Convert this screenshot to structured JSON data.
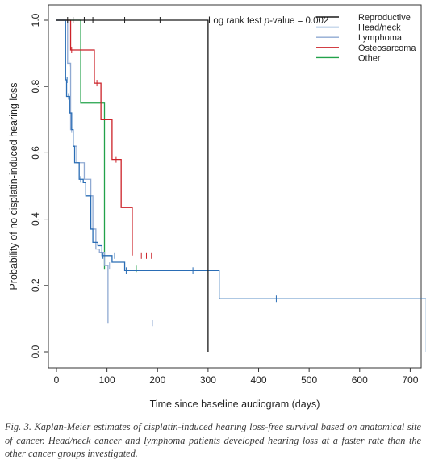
{
  "chart_data": {
    "type": "line",
    "subtype": "kaplan-meier step",
    "title": "",
    "xlabel": "Time since baseline audiogram (days)",
    "ylabel": "Probability of no cisplatin-induced hearing loss",
    "xlim": [
      0,
      750
    ],
    "ylim": [
      0,
      1.0
    ],
    "xticks": [
      0,
      100,
      200,
      300,
      400,
      500,
      600,
      700
    ],
    "yticks": [
      0.0,
      0.2,
      0.4,
      0.6,
      0.8,
      1.0
    ],
    "xtick_labels": [
      "0",
      "100",
      "200",
      "300",
      "400",
      "500",
      "600",
      "700"
    ],
    "ytick_labels": [
      "0.0",
      "0.2",
      "0.4",
      "0.6",
      "0.8",
      "1.0"
    ],
    "grid": false,
    "legend_position": "top-right",
    "annotation": {
      "prefix": "Log rank test ",
      "italic": "p",
      "suffix": "-value = 0.002"
    },
    "series": [
      {
        "name": "Reproductive",
        "color": "#1a1a1a",
        "steps": [
          [
            0,
            1.0
          ],
          [
            300,
            0.0
          ]
        ],
        "censored": [
          [
            22,
            1.0
          ],
          [
            33,
            1.0
          ],
          [
            55,
            1.0
          ],
          [
            72,
            1.0
          ],
          [
            135,
            1.0
          ],
          [
            205,
            1.0
          ]
        ]
      },
      {
        "name": "Head/neck",
        "color": "#2a6db5",
        "steps": [
          [
            0,
            1.0
          ],
          [
            18,
            0.82
          ],
          [
            20,
            0.77
          ],
          [
            26,
            0.72
          ],
          [
            30,
            0.67
          ],
          [
            33,
            0.62
          ],
          [
            36,
            0.57
          ],
          [
            45,
            0.52
          ],
          [
            53,
            0.51
          ],
          [
            58,
            0.47
          ],
          [
            68,
            0.37
          ],
          [
            72,
            0.33
          ],
          [
            82,
            0.32
          ],
          [
            90,
            0.29
          ],
          [
            110,
            0.27
          ],
          [
            135,
            0.245
          ],
          [
            322,
            0.16
          ],
          [
            732,
            0.0
          ]
        ],
        "censored": [
          [
            21,
            0.82
          ],
          [
            24,
            0.77
          ],
          [
            48,
            0.52
          ],
          [
            92,
            0.29
          ],
          [
            115,
            0.29
          ],
          [
            138,
            0.245
          ],
          [
            270,
            0.245
          ],
          [
            435,
            0.16
          ]
        ]
      },
      {
        "name": "Lymphoma",
        "color": "#8fa9d2",
        "steps": [
          [
            0,
            1.0
          ],
          [
            22,
            0.87
          ],
          [
            28,
            0.67
          ],
          [
            33,
            0.62
          ],
          [
            40,
            0.57
          ],
          [
            55,
            0.52
          ],
          [
            68,
            0.47
          ],
          [
            72,
            0.37
          ],
          [
            78,
            0.31
          ],
          [
            85,
            0.3
          ],
          [
            95,
            0.26
          ],
          [
            102,
            0.087
          ]
        ],
        "censored": [
          [
            25,
            0.87
          ],
          [
            30,
            0.67
          ],
          [
            105,
            0.26
          ],
          [
            190,
            0.087
          ]
        ]
      },
      {
        "name": "Osteosarcoma",
        "color": "#cc2229",
        "steps": [
          [
            0,
            1.0
          ],
          [
            28,
            0.91
          ],
          [
            75,
            0.81
          ],
          [
            88,
            0.7
          ],
          [
            110,
            0.58
          ],
          [
            128,
            0.435
          ],
          [
            150,
            0.29
          ]
        ],
        "censored": [
          [
            30,
            0.91
          ],
          [
            80,
            0.81
          ],
          [
            118,
            0.58
          ],
          [
            168,
            0.29
          ],
          [
            178,
            0.29
          ],
          [
            188,
            0.29
          ]
        ]
      },
      {
        "name": "Other",
        "color": "#22a24a",
        "steps": [
          [
            0,
            1.0
          ],
          [
            48,
            0.75
          ],
          [
            95,
            0.25
          ]
        ],
        "censored": [
          [
            158,
            0.25
          ]
        ]
      }
    ]
  },
  "caption": "Fig. 3. Kaplan-Meier estimates of cisplatin-induced hearing loss-free survival based on anatomical site of cancer. Head/neck cancer and lymphoma patients developed hearing loss at a faster rate than the other cancer groups investigated."
}
